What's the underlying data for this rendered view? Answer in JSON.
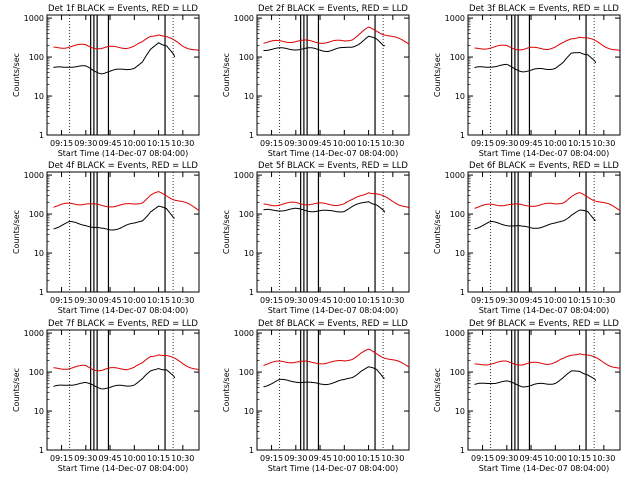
{
  "chart_data": [
    {
      "type": "line",
      "title": "Det 1f BLACK = Events, RED = LLD",
      "ylabel": "Counts/sec",
      "xlabel": "Start Time (14-Dec-07 08:04:00)",
      "x_ticks": [
        "09:15",
        "09:30",
        "09:45",
        "10:00",
        "10:15",
        "10:30"
      ],
      "y_ticks": [
        "1",
        "10",
        "100",
        "1000"
      ],
      "yscale": "log",
      "ylim": [
        1,
        1200
      ],
      "xlim": [
        "09:06",
        "10:40"
      ],
      "series": [
        {
          "name": "Events",
          "color": "#000000",
          "x": [
            "09:10",
            "09:20",
            "09:30",
            "09:35",
            "09:40",
            "09:45",
            "09:55",
            "10:00",
            "10:05",
            "10:10",
            "10:15",
            "10:20",
            "10:25"
          ],
          "values": [
            50,
            60,
            55,
            45,
            40,
            42,
            50,
            55,
            70,
            150,
            250,
            200,
            100
          ]
        },
        {
          "name": "LLD",
          "color": "#dd0000",
          "x": [
            "09:10",
            "09:20",
            "09:30",
            "09:35",
            "09:40",
            "09:45",
            "09:55",
            "10:00",
            "10:05",
            "10:10",
            "10:15",
            "10:20",
            "10:30",
            "10:40"
          ],
          "values": [
            170,
            190,
            200,
            180,
            170,
            175,
            180,
            190,
            230,
            350,
            400,
            320,
            200,
            140
          ]
        }
      ]
    },
    {
      "type": "line",
      "title": "Det 2f BLACK = Events, RED = LLD",
      "ylabel": "Counts/sec",
      "xlabel": "Start Time (14-Dec-07 08:04:00)",
      "x_ticks": [
        "09:15",
        "09:30",
        "09:45",
        "10:00",
        "10:15",
        "10:30"
      ],
      "y_ticks": [
        "1",
        "10",
        "100",
        "1000"
      ],
      "yscale": "log",
      "ylim": [
        1,
        1200
      ],
      "xlim": [
        "09:06",
        "10:40"
      ],
      "series": [
        {
          "name": "Events",
          "color": "#000000",
          "x": [
            "09:10",
            "09:20",
            "09:30",
            "09:40",
            "09:50",
            "10:00",
            "10:05",
            "10:10",
            "10:15",
            "10:20",
            "10:25"
          ],
          "values": [
            160,
            160,
            165,
            160,
            150,
            165,
            190,
            240,
            320,
            280,
            200
          ]
        },
        {
          "name": "LLD",
          "color": "#dd0000",
          "x": [
            "09:10",
            "09:20",
            "09:30",
            "09:40",
            "09:50",
            "10:00",
            "10:05",
            "10:10",
            "10:15",
            "10:20",
            "10:30",
            "10:40"
          ],
          "values": [
            240,
            250,
            260,
            250,
            240,
            260,
            300,
            400,
            550,
            480,
            320,
            230
          ]
        }
      ]
    },
    {
      "type": "line",
      "title": "Det 3f BLACK = Events, RED = LLD",
      "ylabel": "Counts/sec",
      "xlabel": "Start Time (14-Dec-07 08:04:00)",
      "x_ticks": [
        "09:15",
        "09:30",
        "09:45",
        "10:00",
        "10:15",
        "10:30"
      ],
      "y_ticks": [
        "1",
        "10",
        "100",
        "1000"
      ],
      "yscale": "log",
      "ylim": [
        1,
        1200
      ],
      "xlim": [
        "09:06",
        "10:40"
      ],
      "series": [
        {
          "name": "Events",
          "color": "#000000",
          "x": [
            "09:10",
            "09:20",
            "09:30",
            "09:35",
            "09:40",
            "09:45",
            "09:55",
            "10:00",
            "10:05",
            "10:10",
            "10:15",
            "10:20",
            "10:25"
          ],
          "values": [
            50,
            60,
            60,
            50,
            45,
            45,
            50,
            55,
            70,
            120,
            140,
            120,
            70
          ]
        },
        {
          "name": "LLD",
          "color": "#dd0000",
          "x": [
            "09:10",
            "09:20",
            "09:30",
            "09:35",
            "09:40",
            "09:45",
            "09:55",
            "10:00",
            "10:05",
            "10:10",
            "10:15",
            "10:20",
            "10:30",
            "10:40"
          ],
          "values": [
            160,
            180,
            190,
            170,
            160,
            165,
            170,
            180,
            220,
            300,
            350,
            300,
            200,
            140
          ]
        }
      ]
    },
    {
      "type": "line",
      "title": "Det 4f BLACK = Events, RED = LLD",
      "ylabel": "Counts/sec",
      "xlabel": "Start Time (14-Dec-07 08:04:00)",
      "x_ticks": [
        "09:15",
        "09:30",
        "09:45",
        "10:00",
        "10:15",
        "10:30"
      ],
      "y_ticks": [
        "1",
        "10",
        "100",
        "1000"
      ],
      "yscale": "log",
      "ylim": [
        1,
        1200
      ],
      "xlim": [
        "09:06",
        "10:40"
      ],
      "series": [
        {
          "name": "Events",
          "color": "#000000",
          "x": [
            "09:10",
            "09:20",
            "09:30",
            "09:35",
            "09:40",
            "09:45",
            "09:55",
            "10:00",
            "10:05",
            "10:10",
            "10:15",
            "10:20",
            "10:25"
          ],
          "values": [
            45,
            60,
            55,
            45,
            40,
            40,
            50,
            55,
            70,
            120,
            150,
            130,
            80
          ]
        },
        {
          "name": "LLD",
          "color": "#dd0000",
          "x": [
            "09:10",
            "09:20",
            "09:30",
            "09:35",
            "09:40",
            "09:45",
            "09:55",
            "10:00",
            "10:05",
            "10:10",
            "10:15",
            "10:20",
            "10:30",
            "10:40"
          ],
          "values": [
            160,
            180,
            190,
            170,
            160,
            165,
            170,
            180,
            210,
            300,
            350,
            300,
            200,
            130
          ]
        }
      ]
    },
    {
      "type": "line",
      "title": "Det 5f BLACK = Events, RED = LLD",
      "ylabel": "Counts/sec",
      "xlabel": "Start Time (14-Dec-07 08:04:00)",
      "x_ticks": [
        "09:15",
        "09:30",
        "09:45",
        "10:00",
        "10:15",
        "10:30"
      ],
      "y_ticks": [
        "1",
        "10",
        "100",
        "1000"
      ],
      "yscale": "log",
      "ylim": [
        1,
        1200
      ],
      "xlim": [
        "09:06",
        "10:40"
      ],
      "series": [
        {
          "name": "Events",
          "color": "#000000",
          "x": [
            "09:10",
            "09:20",
            "09:30",
            "09:40",
            "09:50",
            "10:00",
            "10:05",
            "10:10",
            "10:15",
            "10:20",
            "10:25"
          ],
          "values": [
            120,
            130,
            130,
            125,
            115,
            125,
            150,
            180,
            220,
            180,
            110
          ]
        },
        {
          "name": "LLD",
          "color": "#dd0000",
          "x": [
            "09:10",
            "09:20",
            "09:30",
            "09:40",
            "09:50",
            "10:00",
            "10:05",
            "10:10",
            "10:15",
            "10:20",
            "10:30",
            "10:40"
          ],
          "values": [
            170,
            180,
            190,
            185,
            175,
            185,
            220,
            300,
            380,
            320,
            220,
            140
          ]
        }
      ]
    },
    {
      "type": "line",
      "title": "Det 6f BLACK = Events, RED = LLD",
      "ylabel": "Counts/sec",
      "xlabel": "Start Time (14-Dec-07 08:04:00)",
      "x_ticks": [
        "09:15",
        "09:30",
        "09:45",
        "10:00",
        "10:15",
        "10:30"
      ],
      "y_ticks": [
        "1",
        "10",
        "100",
        "1000"
      ],
      "yscale": "log",
      "ylim": [
        1,
        1200
      ],
      "xlim": [
        "09:06",
        "10:40"
      ],
      "series": [
        {
          "name": "Events",
          "color": "#000000",
          "x": [
            "09:10",
            "09:20",
            "09:30",
            "09:35",
            "09:40",
            "09:45",
            "09:55",
            "10:00",
            "10:05",
            "10:10",
            "10:15",
            "10:20",
            "10:25"
          ],
          "values": [
            45,
            60,
            55,
            50,
            45,
            45,
            50,
            55,
            70,
            100,
            120,
            110,
            70
          ]
        },
        {
          "name": "LLD",
          "color": "#dd0000",
          "x": [
            "09:10",
            "09:20",
            "09:30",
            "09:35",
            "09:40",
            "09:45",
            "09:55",
            "10:00",
            "10:05",
            "10:10",
            "10:15",
            "10:20",
            "10:30",
            "10:40"
          ],
          "values": [
            150,
            170,
            180,
            170,
            165,
            170,
            175,
            180,
            210,
            280,
            330,
            280,
            190,
            130
          ]
        }
      ]
    },
    {
      "type": "line",
      "title": "Det 7f BLACK = Events, RED = LLD",
      "ylabel": "Counts/sec",
      "xlabel": "Start Time (14-Dec-07 08:04:00)",
      "x_ticks": [
        "09:15",
        "09:30",
        "09:45",
        "10:00",
        "10:15",
        "10:30"
      ],
      "y_ticks": [
        "1",
        "10",
        "100",
        "1000"
      ],
      "yscale": "log",
      "ylim": [
        1,
        1200
      ],
      "xlim": [
        "09:06",
        "10:40"
      ],
      "series": [
        {
          "name": "Events",
          "color": "#000000",
          "x": [
            "09:10",
            "09:20",
            "09:30",
            "09:35",
            "09:40",
            "09:45",
            "09:55",
            "10:00",
            "10:05",
            "10:10",
            "10:15",
            "10:20",
            "10:25"
          ],
          "values": [
            40,
            50,
            50,
            45,
            40,
            40,
            45,
            50,
            65,
            100,
            130,
            120,
            70
          ]
        },
        {
          "name": "LLD",
          "color": "#dd0000",
          "x": [
            "09:10",
            "09:20",
            "09:30",
            "09:35",
            "09:40",
            "09:45",
            "09:55",
            "10:00",
            "10:05",
            "10:10",
            "10:15",
            "10:20",
            "10:30",
            "10:40"
          ],
          "values": [
            120,
            130,
            140,
            120,
            115,
            120,
            125,
            135,
            160,
            250,
            300,
            260,
            170,
            110
          ]
        }
      ]
    },
    {
      "type": "line",
      "title": "Det 8f BLACK = Events, RED = LLD",
      "ylabel": "Counts/sec",
      "xlabel": "Start Time (14-Dec-07 08:04:00)",
      "x_ticks": [
        "09:15",
        "09:30",
        "09:45",
        "10:00",
        "10:15",
        "10:30"
      ],
      "y_ticks": [
        "1",
        "10",
        "100",
        "1000"
      ],
      "yscale": "log",
      "ylim": [
        1,
        1200
      ],
      "xlim": [
        "09:06",
        "10:40"
      ],
      "series": [
        {
          "name": "Events",
          "color": "#000000",
          "x": [
            "09:10",
            "09:20",
            "09:30",
            "09:35",
            "09:40",
            "09:45",
            "09:55",
            "10:00",
            "10:05",
            "10:10",
            "10:15",
            "10:20",
            "10:25"
          ],
          "values": [
            45,
            60,
            60,
            55,
            50,
            50,
            55,
            60,
            75,
            110,
            130,
            110,
            70
          ]
        },
        {
          "name": "LLD",
          "color": "#dd0000",
          "x": [
            "09:10",
            "09:20",
            "09:30",
            "09:35",
            "09:40",
            "09:45",
            "09:55",
            "10:00",
            "10:05",
            "10:10",
            "10:15",
            "10:20",
            "10:30",
            "10:40"
          ],
          "values": [
            160,
            180,
            190,
            180,
            170,
            175,
            180,
            190,
            230,
            300,
            360,
            300,
            200,
            140
          ]
        }
      ]
    },
    {
      "type": "line",
      "title": "Det 9f BLACK = Events, RED = LLD",
      "ylabel": "Counts/sec",
      "xlabel": "Start Time (14-Dec-07 08:04:00)",
      "x_ticks": [
        "09:15",
        "09:30",
        "09:45",
        "10:00",
        "10:15",
        "10:30"
      ],
      "y_ticks": [
        "1",
        "10",
        "100",
        "1000"
      ],
      "yscale": "log",
      "ylim": [
        1,
        1200
      ],
      "xlim": [
        "09:06",
        "10:40"
      ],
      "series": [
        {
          "name": "Events",
          "color": "#000000",
          "x": [
            "09:10",
            "09:20",
            "09:30",
            "09:35",
            "09:40",
            "09:45",
            "09:55",
            "10:00",
            "10:05",
            "10:10",
            "10:15",
            "10:20",
            "10:25"
          ],
          "values": [
            45,
            55,
            55,
            50,
            45,
            45,
            50,
            55,
            70,
            100,
            110,
            90,
            60
          ]
        },
        {
          "name": "LLD",
          "color": "#dd0000",
          "x": [
            "09:10",
            "09:20",
            "09:30",
            "09:35",
            "09:40",
            "09:45",
            "09:55",
            "10:00",
            "10:05",
            "10:10",
            "10:15",
            "10:20",
            "10:30",
            "10:40"
          ],
          "values": [
            150,
            170,
            180,
            170,
            160,
            165,
            170,
            180,
            210,
            270,
            320,
            270,
            180,
            120
          ]
        }
      ]
    }
  ]
}
